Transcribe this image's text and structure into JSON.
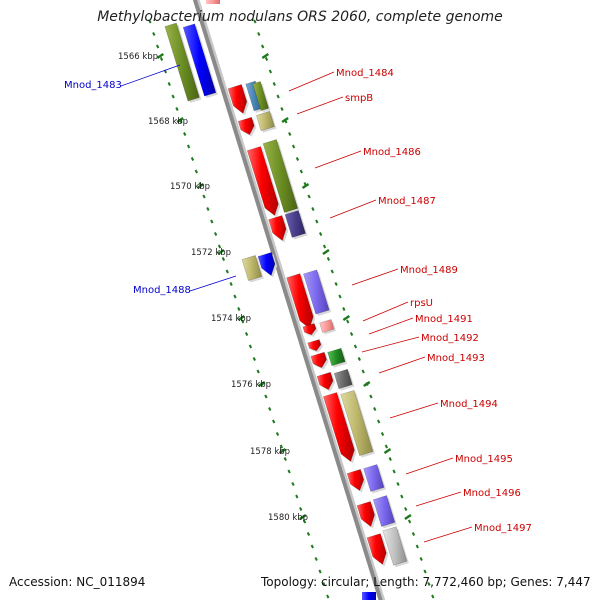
{
  "title": "Methylobacterium nodulans ORS 2060, complete genome",
  "footer": {
    "accession": "Accession: NC_011894",
    "topology": "Topology: circular; Length: 7,772,460 bp; Genes: 7,447"
  },
  "ticks": [
    "1566 kbp",
    "1568 kbp",
    "1570 kbp",
    "1572 kbp",
    "1574 kbp",
    "1576 kbp",
    "1578 kbp",
    "1580 kbp"
  ],
  "labels_right": [
    "Mnod_1484",
    "smpB",
    "Mnod_1486",
    "Mnod_1487",
    "Mnod_1489",
    "rpsU",
    "Mnod_1491",
    "Mnod_1492",
    "Mnod_1493",
    "Mnod_1494",
    "Mnod_1495",
    "Mnod_1496",
    "Mnod_1497"
  ],
  "labels_left": [
    "Mnod_1483",
    "Mnod_1488"
  ],
  "colors": {
    "cds_forward": "#ff0000",
    "label_right": "#cc0000",
    "label_left": "#0000cc",
    "tick_dots": "#1e7a1e",
    "backbone": "#8a8a8a",
    "olive": "#6b8e23",
    "blue": "#0000ff",
    "khaki": "#bdb76b",
    "purple": "#7b68ee",
    "indigo": "#483d8b",
    "green": "#228b22",
    "gray": "#696969",
    "lightgray": "#c0c0c0",
    "pink": "#ff9999"
  }
}
